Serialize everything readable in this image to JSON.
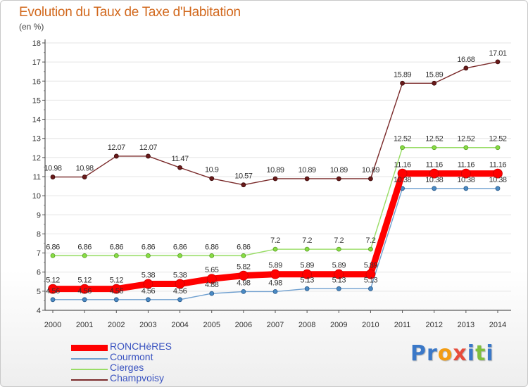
{
  "title": "Evolution du Taux de Taxe d'Habitation",
  "unit_label": "(en %)",
  "logo": {
    "text": "Proxiti",
    "letters": [
      {
        "ch": "P",
        "color": "#3a78c8"
      },
      {
        "ch": "r",
        "color": "#3a78c8"
      },
      {
        "ch": "o",
        "color": "#f39c12"
      },
      {
        "ch": "x",
        "color": "#e74c3c"
      },
      {
        "ch": "i",
        "color": "#3a78c8"
      },
      {
        "ch": "t",
        "color": "#7fbf3f"
      },
      {
        "ch": "i",
        "color": "#3a78c8"
      }
    ]
  },
  "chart_data": {
    "type": "line",
    "x": [
      "2000",
      "2001",
      "2002",
      "2003",
      "2004",
      "2005",
      "2006",
      "2007",
      "2008",
      "2009",
      "2010",
      "2011",
      "2012",
      "2013",
      "2014"
    ],
    "ylim": [
      4,
      18
    ],
    "yticks": [
      4,
      5,
      6,
      7,
      8,
      9,
      10,
      11,
      12,
      13,
      14,
      15,
      16,
      17,
      18
    ],
    "grid": "horizontal",
    "legend_position": "bottom-left",
    "series": [
      {
        "name": "RONCHèRES",
        "color": "#ff0000",
        "values": [
          5.12,
          5.12,
          5.12,
          5.38,
          5.38,
          5.65,
          5.82,
          5.89,
          5.89,
          5.89,
          5.89,
          11.16,
          11.16,
          11.16,
          11.16
        ]
      },
      {
        "name": "Courmont",
        "color": "#6fa0d0",
        "values": [
          4.56,
          4.56,
          4.56,
          4.56,
          4.56,
          4.88,
          4.98,
          4.98,
          5.13,
          5.13,
          5.13,
          10.38,
          10.38,
          10.38,
          10.38
        ]
      },
      {
        "name": "Cierges",
        "color": "#99dd66",
        "values": [
          6.86,
          6.86,
          6.86,
          6.86,
          6.86,
          6.86,
          6.86,
          7.2,
          7.2,
          7.2,
          7.2,
          12.52,
          12.52,
          12.52,
          12.52
        ]
      },
      {
        "name": "Champvoisy",
        "color": "#7a2a2a",
        "values": [
          10.98,
          10.98,
          12.07,
          12.07,
          11.47,
          10.9,
          10.57,
          10.89,
          10.89,
          10.89,
          10.89,
          15.89,
          15.89,
          16.68,
          17.01
        ]
      }
    ],
    "point_labels": {
      "RONCHèRES": [
        "5.12",
        "5.12",
        "5.12",
        "5.38",
        "5.38",
        "5.65",
        "5.82",
        "5.89",
        "5.89",
        "5.89",
        "5.89",
        "11.16",
        "11.16",
        "11.16",
        "11.16"
      ],
      "Courmont": [
        "4.56",
        "4.56",
        "4.56",
        "4.56",
        "4.56",
        "4.88",
        "4.98",
        "4.98",
        "5.13",
        "5.13",
        "5.13",
        "10.38",
        "10.38",
        "10.38",
        "10.38"
      ],
      "Cierges": [
        "6.86",
        "6.86",
        "6.86",
        "6.86",
        "6.86",
        "6.86",
        "6.86",
        "7.2",
        "7.2",
        "7.2",
        "7.2",
        "12.52",
        "12.52",
        "12.52",
        "12.52"
      ],
      "Champvoisy": [
        "10.98",
        "10.98",
        "12.07",
        "12.07",
        "11.47",
        "10.9",
        "10.57",
        "10.89",
        "10.89",
        "10.89",
        "10.89",
        "15.89",
        "15.89",
        "16.68",
        "17.01"
      ]
    }
  }
}
